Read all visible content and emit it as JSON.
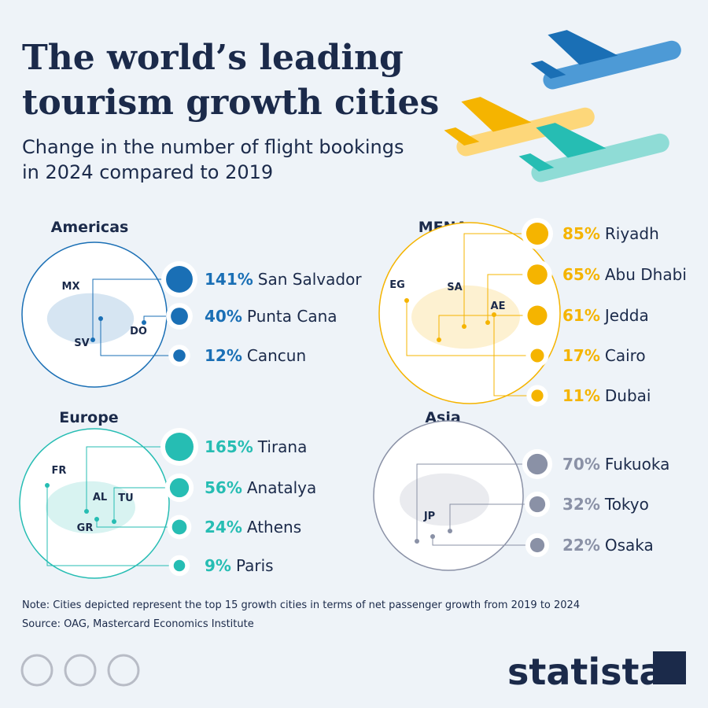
{
  "title": [
    "The world’s leading",
    "tourism growth cities"
  ],
  "subtitle": [
    "Change in the number of flight bookings",
    "in 2024 compared to 2019"
  ],
  "regions": [
    {
      "name": "Americas",
      "color": "#1a6fb5",
      "codes": [
        "MX",
        "SV",
        "DO"
      ],
      "items": [
        {
          "value": 141,
          "value_label": "141%",
          "city": "San Salvador"
        },
        {
          "value": 40,
          "value_label": "40%",
          "city": "Punta Cana"
        },
        {
          "value": 12,
          "value_label": "12%",
          "city": "Cancun"
        }
      ]
    },
    {
      "name": "MENA",
      "color": "#f5b400",
      "codes": [
        "EG",
        "SA",
        "AE"
      ],
      "items": [
        {
          "value": 85,
          "value_label": "85%",
          "city": "Riyadh"
        },
        {
          "value": 65,
          "value_label": "65%",
          "city": "Abu Dhabi"
        },
        {
          "value": 61,
          "value_label": "61%",
          "city": "Jedda"
        },
        {
          "value": 17,
          "value_label": "17%",
          "city": "Cairo"
        },
        {
          "value": 11,
          "value_label": "11%",
          "city": "Dubai"
        }
      ]
    },
    {
      "name": "Europe",
      "color": "#26bdb3",
      "codes": [
        "FR",
        "AL",
        "TU",
        "GR"
      ],
      "items": [
        {
          "value": 165,
          "value_label": "165%",
          "city": "Tirana"
        },
        {
          "value": 56,
          "value_label": "56%",
          "city": "Anatalya"
        },
        {
          "value": 24,
          "value_label": "24%",
          "city": "Athens"
        },
        {
          "value": 9,
          "value_label": "9%",
          "city": "Paris"
        }
      ]
    },
    {
      "name": "Asia",
      "color": "#8a91a6",
      "codes": [
        "JP"
      ],
      "items": [
        {
          "value": 70,
          "value_label": "70%",
          "city": "Fukuoka"
        },
        {
          "value": 32,
          "value_label": "32%",
          "city": "Tokyo"
        },
        {
          "value": 22,
          "value_label": "22%",
          "city": "Osaka"
        }
      ]
    }
  ],
  "note": "Note: Cities depicted represent the top 15 growth cities in terms of net passenger growth from 2019 to 2024",
  "source": "Source: OAG, Mastercard Economics Institute",
  "brand": "statista"
}
